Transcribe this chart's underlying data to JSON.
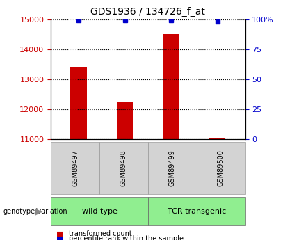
{
  "title": "GDS1936 / 134726_f_at",
  "samples": [
    "GSM89497",
    "GSM89498",
    "GSM89499",
    "GSM89500"
  ],
  "transformed_counts": [
    13380,
    12220,
    14500,
    11060
  ],
  "percentile_ranks": [
    99,
    99,
    99,
    98
  ],
  "ylim_left": [
    11000,
    15000
  ],
  "yticks_left": [
    11000,
    12000,
    13000,
    14000,
    15000
  ],
  "yticks_right": [
    0,
    25,
    50,
    75,
    100
  ],
  "ytick_labels_right": [
    "0",
    "25",
    "50",
    "75",
    "100%"
  ],
  "bar_color": "#CC0000",
  "dot_color": "#0000CC",
  "groups": [
    {
      "label": "wild type",
      "samples": [
        0,
        1
      ],
      "color": "#90EE90"
    },
    {
      "label": "TCR transgenic",
      "samples": [
        2,
        3
      ],
      "color": "#90EE90"
    }
  ],
  "xlabel_annotation": "genotype/variation",
  "legend_items": [
    {
      "color": "#CC0000",
      "label": "transformed count"
    },
    {
      "color": "#0000CC",
      "label": "percentile rank within the sample"
    }
  ],
  "background_color": "#ffffff",
  "plot_bg_color": "#ffffff",
  "tick_color_left": "#CC0000",
  "tick_color_right": "#0000CC",
  "sample_box_color": "#D3D3D3",
  "group_box_border": "#666666"
}
